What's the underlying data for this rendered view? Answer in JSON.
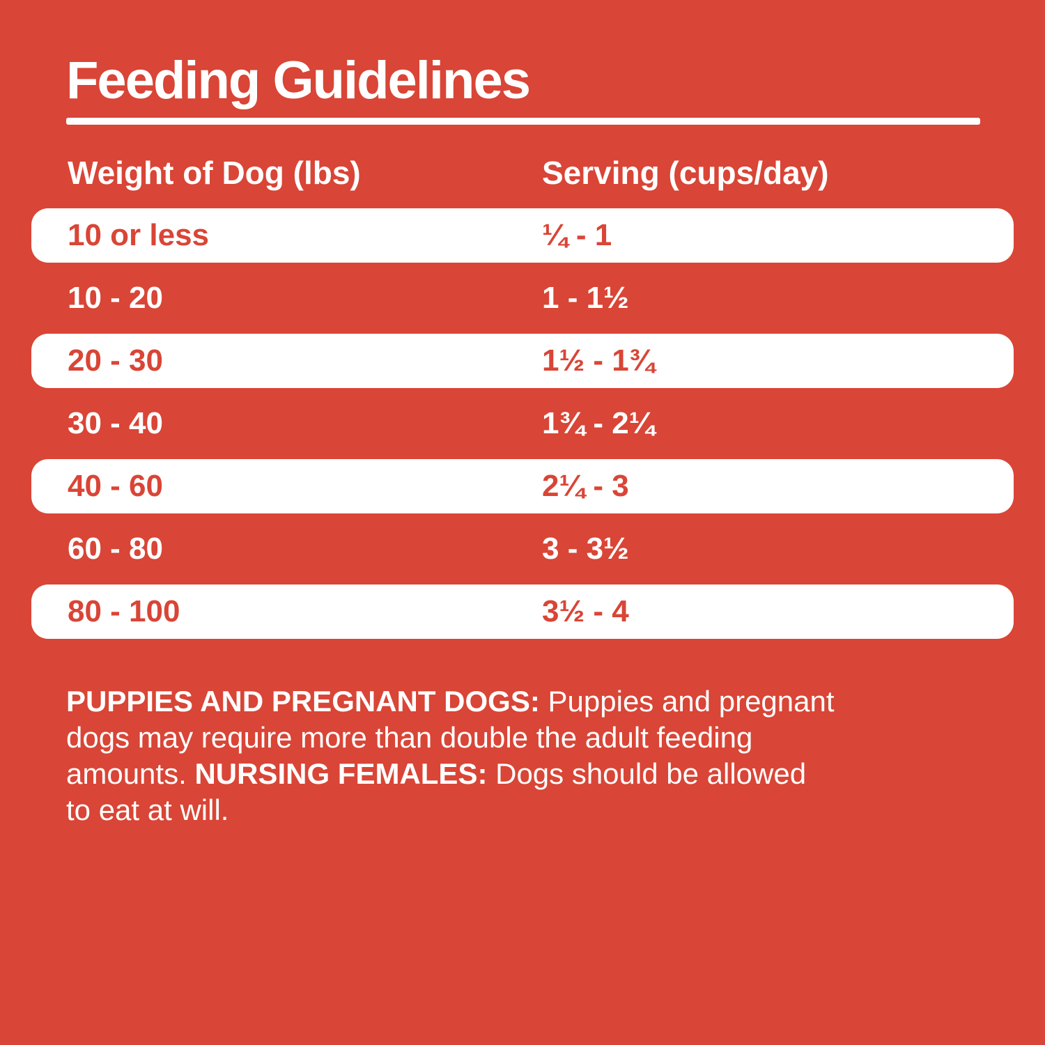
{
  "colors": {
    "background": "#D94536",
    "row_bar": "#FFFFFF",
    "text_light": "#FFFFFF",
    "text_red": "#D94536"
  },
  "title": "Feeding Guidelines",
  "table": {
    "headers": {
      "weight": "Weight of Dog (lbs)",
      "serving": "Serving (cups/day)"
    },
    "rows": [
      {
        "weight": "10 or less",
        "serving": "¼ - 1"
      },
      {
        "weight": "10 - 20",
        "serving": "1 - 1½"
      },
      {
        "weight": "20 - 30",
        "serving": "1½ - 1¾"
      },
      {
        "weight": "30 - 40",
        "serving": "1¾ - 2¼"
      },
      {
        "weight": "40 - 60",
        "serving": "2¼ - 3"
      },
      {
        "weight": "60 - 80",
        "serving": "3 - 3½"
      },
      {
        "weight": "80 - 100",
        "serving": "3½ - 4"
      }
    ]
  },
  "footnote": {
    "lines": [
      {
        "segments": [
          {
            "text": "PUPPIES AND PREGNANT DOGS:"
          },
          {
            "text": " Puppies and pregnant"
          }
        ]
      },
      {
        "segments": [
          {
            "text": "dogs may require more than double the adult feeding"
          }
        ]
      },
      {
        "segments": [
          {
            "text": "amounts. "
          },
          {
            "text": "NURSING FEMALES:"
          },
          {
            "text": " Dogs should be allowed"
          }
        ]
      },
      {
        "segments": [
          {
            "text": "to eat at will."
          }
        ]
      }
    ]
  }
}
